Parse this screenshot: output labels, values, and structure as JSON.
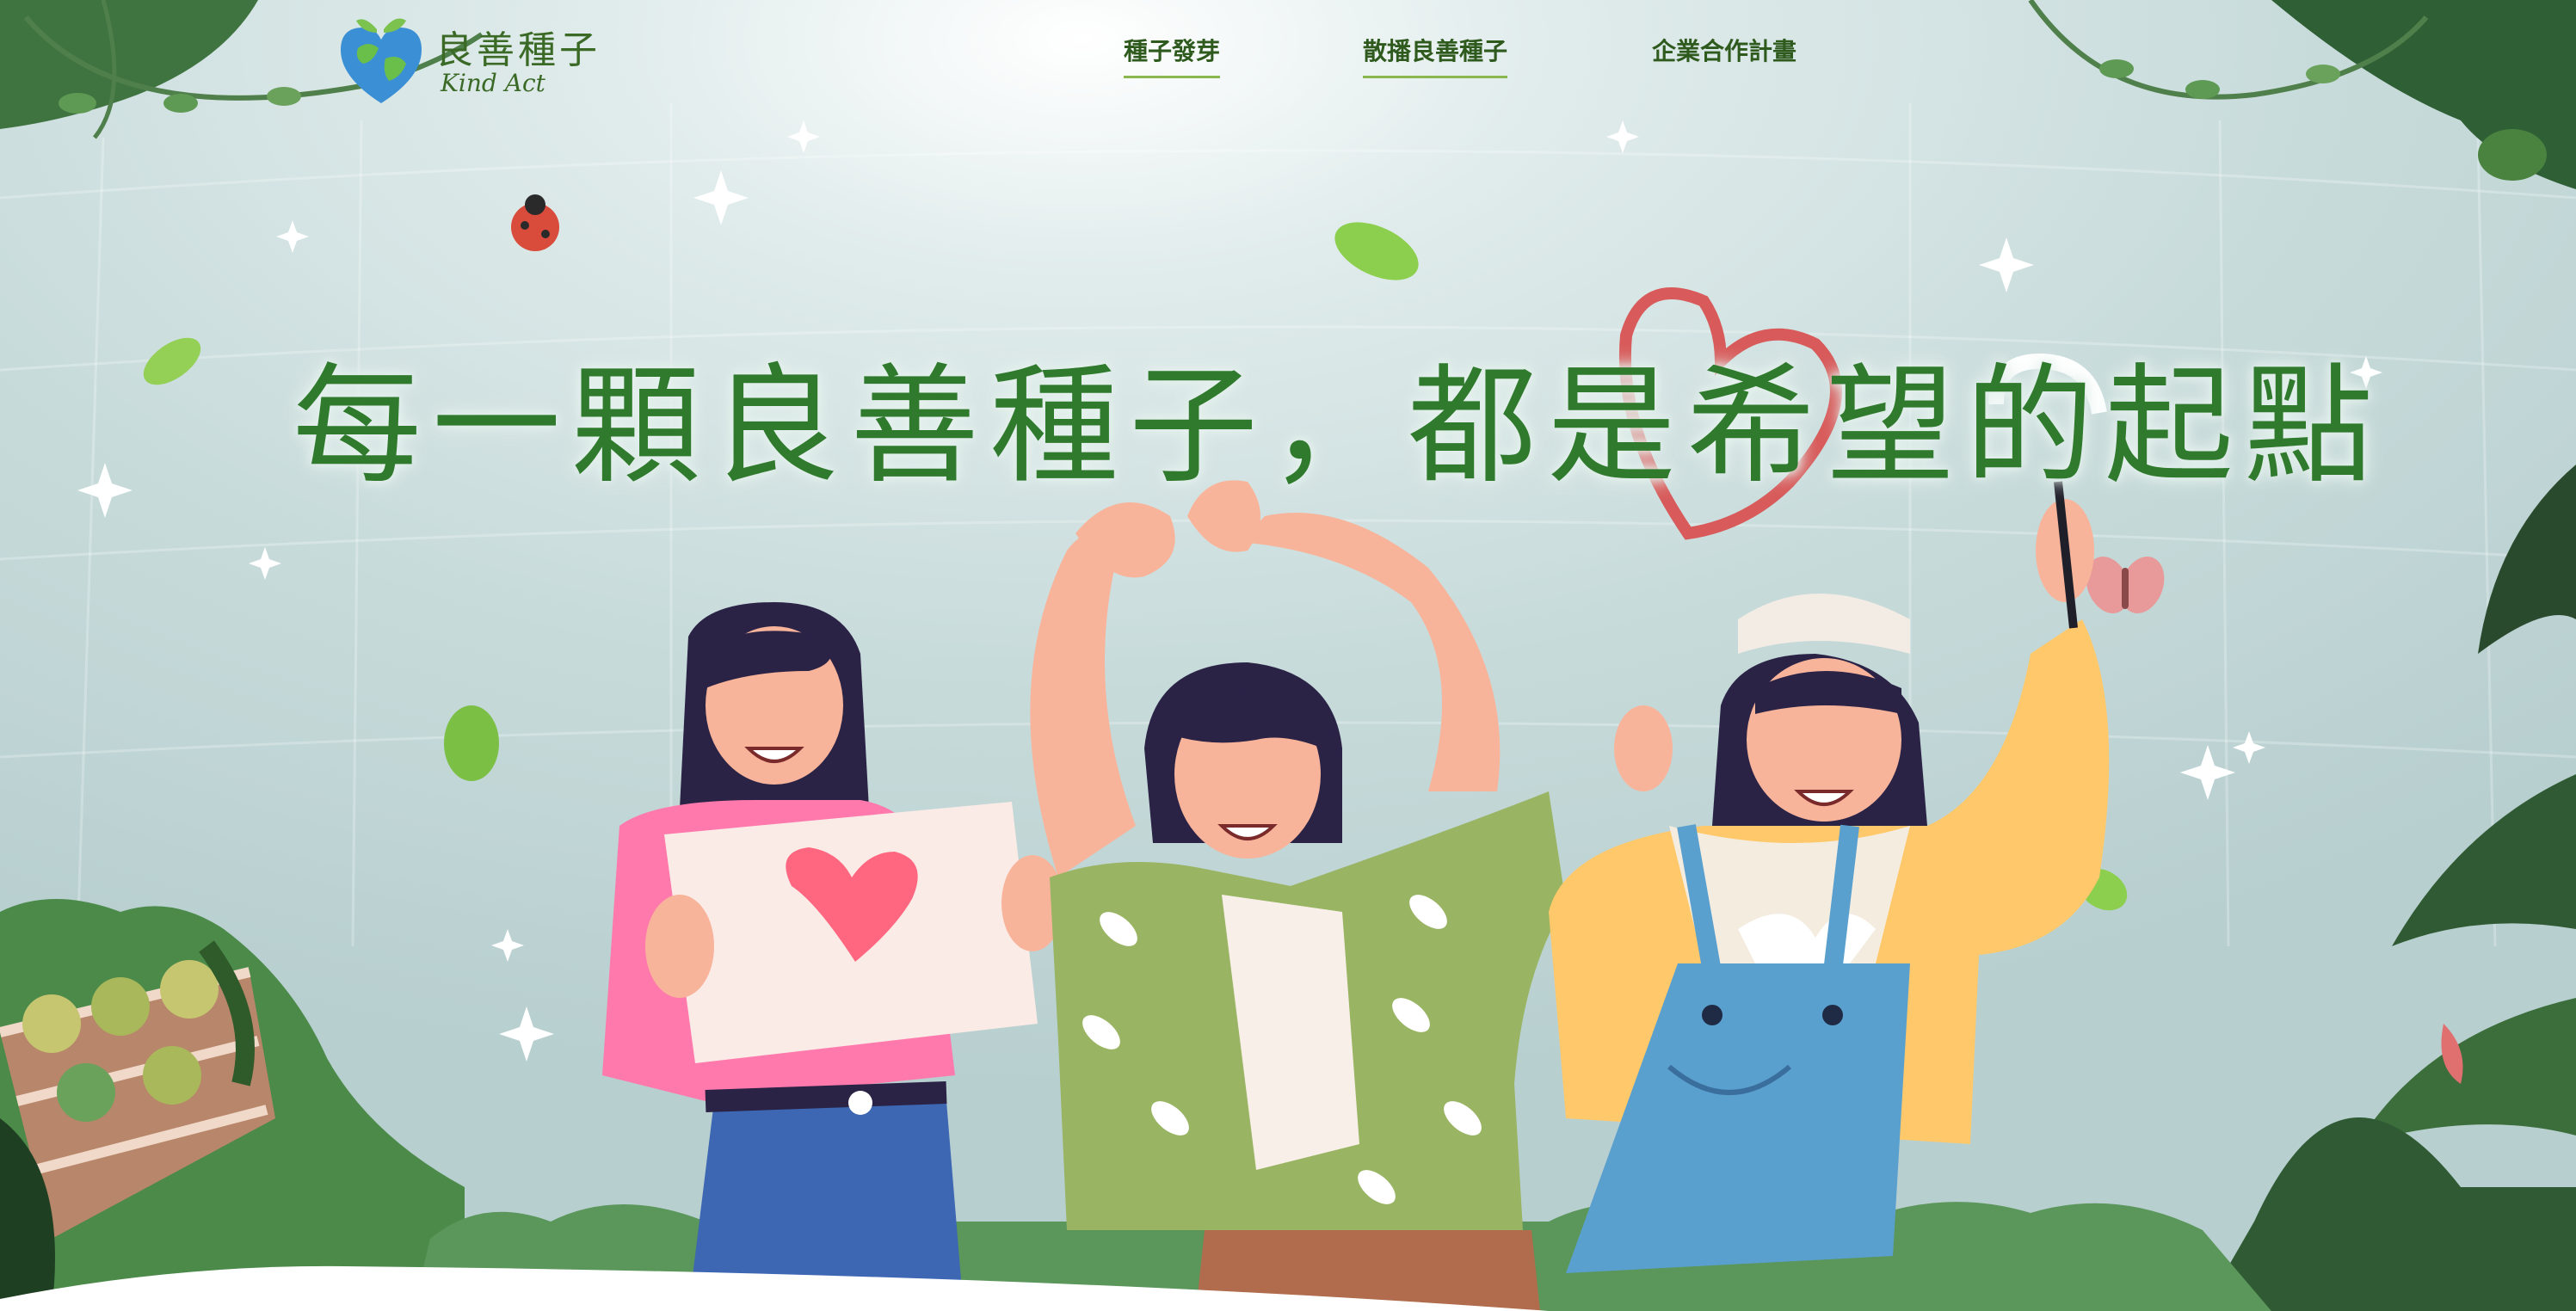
{
  "logo": {
    "name": "良善種子",
    "subtitle": "Kind Act"
  },
  "nav": {
    "items": [
      {
        "label": "種子發芽"
      },
      {
        "label": "散播良善種子"
      },
      {
        "label": "企業合作計畫"
      }
    ]
  },
  "hero": {
    "headline": "每一顆良善種子，都是希望的起點"
  },
  "colors": {
    "accent": "#8ab84e",
    "text": "#2f5a1e",
    "sky": "#c6d9d9"
  }
}
